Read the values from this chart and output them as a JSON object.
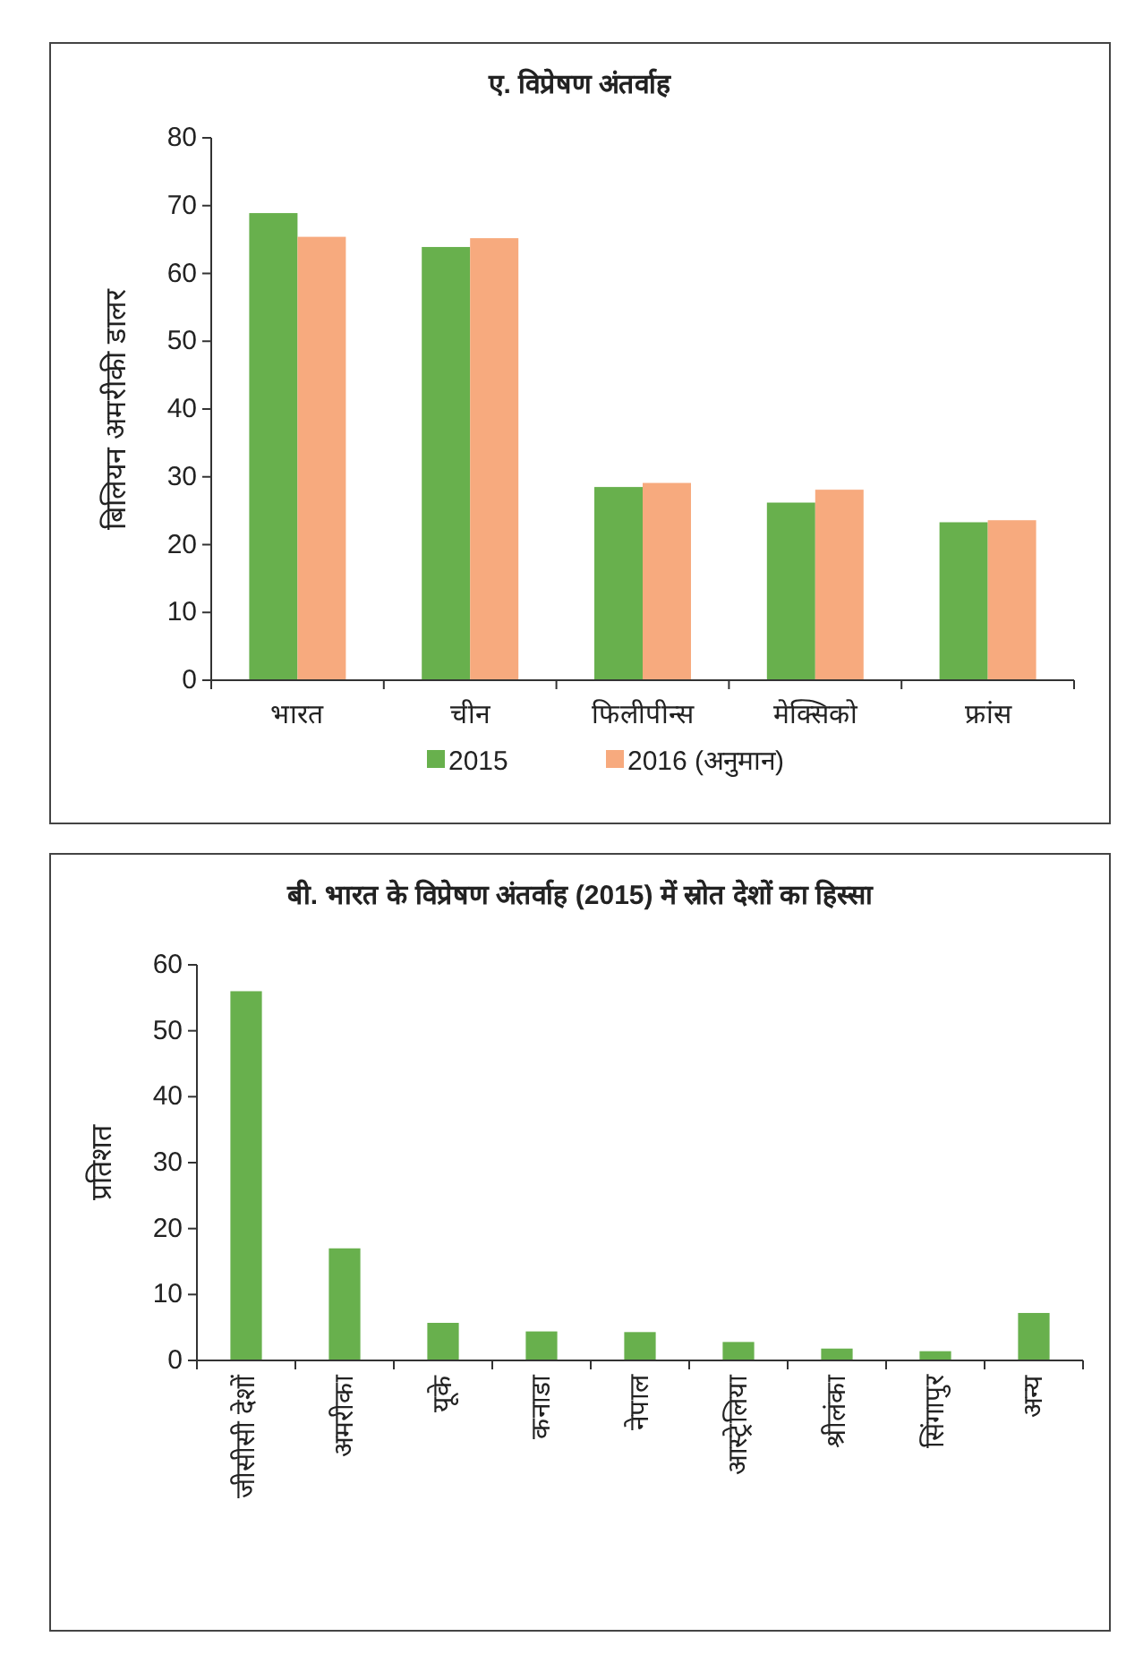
{
  "chart_data": [
    {
      "type": "bar",
      "title": "ए. विप्रेषण अंतर्वाह",
      "ylabel": "बिलियन अमरीकी डालर",
      "categories": [
        "भारत",
        "चीन",
        "फिलीपीन्स",
        "मेक्सिको",
        "फ्रांस"
      ],
      "series": [
        {
          "name": "2015",
          "color": "#68b04d",
          "values": [
            68.9,
            63.9,
            28.5,
            26.2,
            23.3
          ]
        },
        {
          "name": "2016 (अनुमान)",
          "color": "#f7aa7e",
          "values": [
            65.4,
            65.2,
            29.1,
            28.1,
            23.6
          ]
        }
      ],
      "ylim": [
        0,
        80
      ],
      "yticks": [
        0,
        10,
        20,
        30,
        40,
        50,
        60,
        70,
        80
      ],
      "legend": "bottom"
    },
    {
      "type": "bar",
      "title": "बी. भारत के विप्रेषण अंतर्वाह (2015) में स्रोत देशों का हिस्सा",
      "ylabel": "प्रतिशत",
      "categories": [
        "जीसीसी देशों",
        "अमरीका",
        "यूके",
        "कनाडा",
        "नेपाल",
        "आस्ट्रेलिया",
        "श्रीलंका",
        "सिंगापुर",
        "अन्य"
      ],
      "series": [
        {
          "color": "#68b04d",
          "values": [
            56,
            17,
            5.7,
            4.4,
            4.3,
            2.8,
            1.8,
            1.4,
            7.2
          ]
        }
      ],
      "ylim": [
        0,
        60
      ],
      "yticks": [
        0,
        10,
        20,
        30,
        40,
        50,
        60
      ]
    }
  ]
}
